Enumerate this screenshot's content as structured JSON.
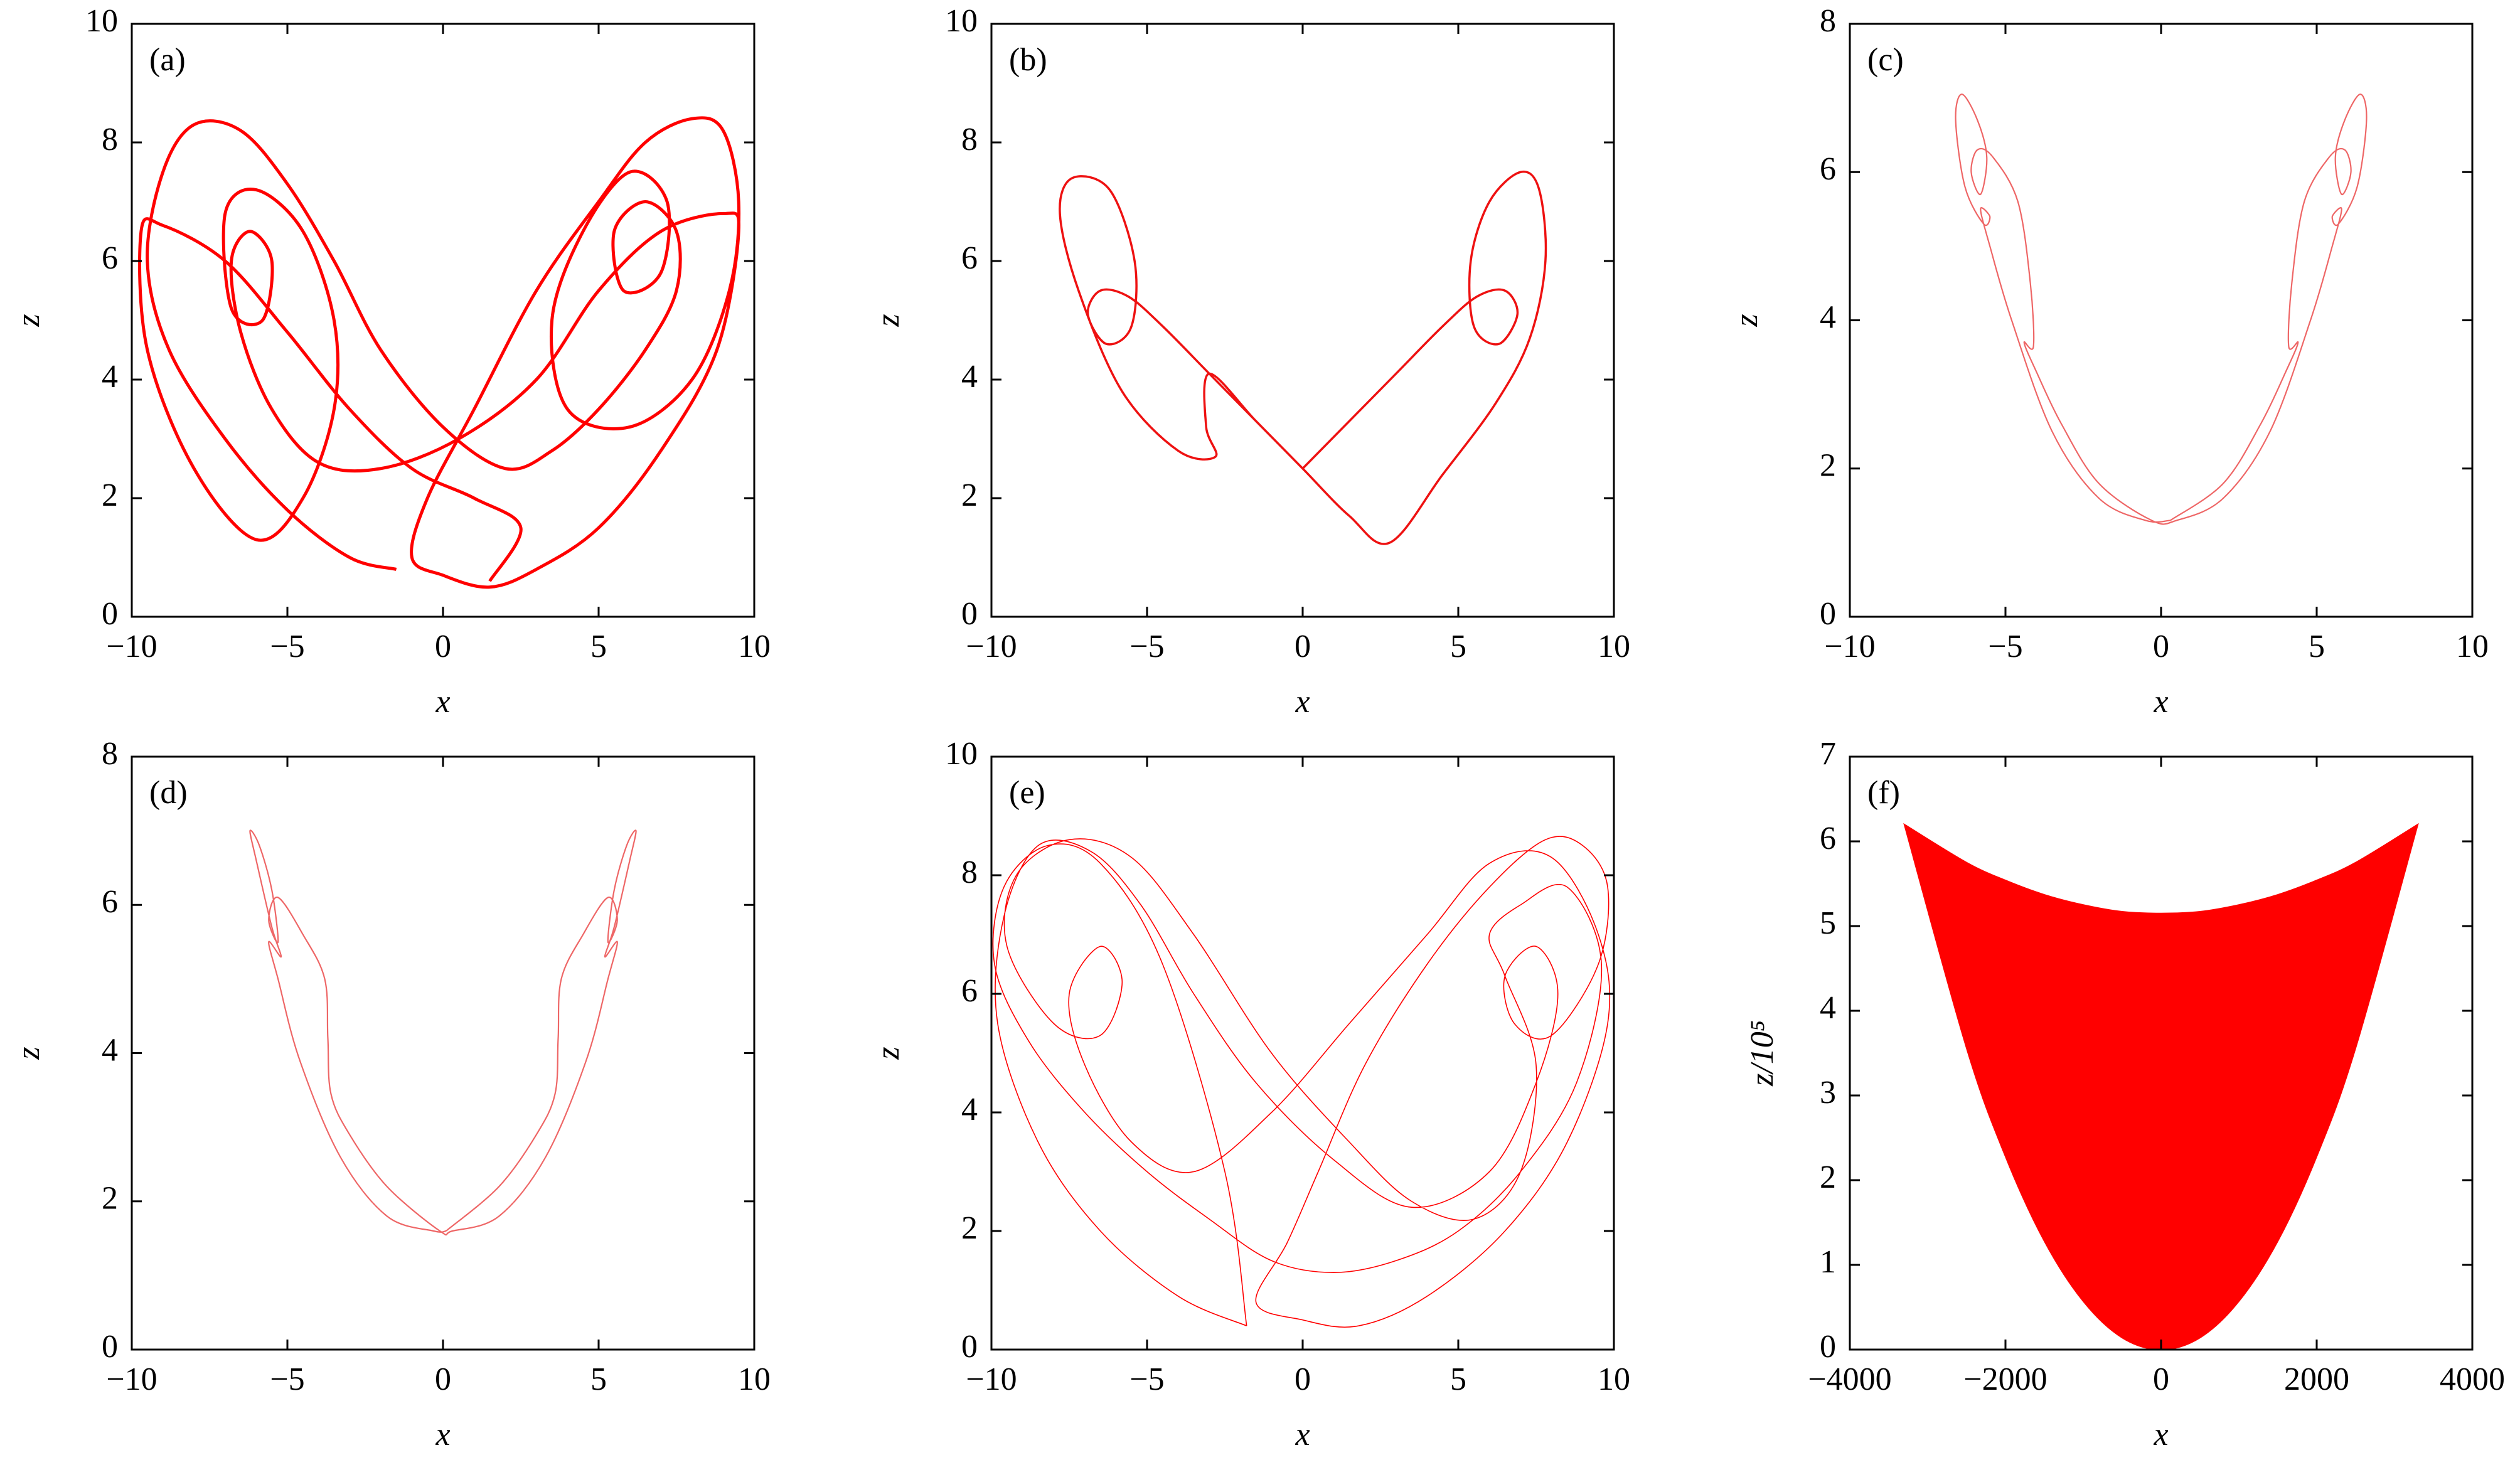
{
  "chart_data": [
    {
      "type": "line",
      "label": "(a)",
      "xlabel": "x",
      "ylabel": "z",
      "xlim": [
        -10,
        10
      ],
      "ylim": [
        0,
        10
      ],
      "xticks": [
        {
          "value": -10,
          "label": "−10"
        },
        {
          "value": -5,
          "label": "−5"
        },
        0,
        5,
        10
      ],
      "yticks": [
        0,
        2,
        4,
        6,
        8,
        10
      ],
      "series": [
        {
          "color": "#ff0000",
          "x": [
            -1.5,
            -3,
            -5,
            -7,
            -8.8,
            -9.5,
            -9,
            -8,
            -6.5,
            -5,
            -3.5,
            -2,
            0,
            2,
            3.5,
            5,
            6.5,
            7.5,
            7.5,
            6.5,
            5.5,
            5.8,
            7,
            7.2,
            6,
            4.5,
            3.5,
            4,
            6,
            8,
            9.2,
            9.5,
            9,
            8,
            6.5,
            5,
            3,
            1,
            -0.5,
            -1,
            0,
            1.5,
            3,
            5,
            7,
            8.8,
            9.5,
            9,
            7,
            5,
            3,
            0.5,
            -2,
            -4,
            -5.5,
            -6.5,
            -6.8,
            -6.2,
            -5.5,
            -5.8,
            -6.8,
            -7,
            -6,
            -4.5,
            -3.5,
            -3.5,
            -4.5,
            -6,
            -8,
            -9.5,
            -9.7,
            -9,
            -7,
            -5,
            -3,
            -1,
            1,
            2.5,
            1.5
          ],
          "values": [
            0.8,
            1,
            1.8,
            3,
            4.5,
            6,
            7.5,
            8.3,
            8.2,
            7.3,
            6,
            4.5,
            3.2,
            2.5,
            2.8,
            3.5,
            4.5,
            5.5,
            6.5,
            7,
            6.5,
            5.5,
            5.8,
            7,
            7.5,
            6.5,
            5,
            3.5,
            3.2,
            4,
            5.5,
            7,
            8.2,
            8.4,
            8,
            7,
            5.5,
            3.5,
            2,
            1,
            0.7,
            0.5,
            0.8,
            1.5,
            2.8,
            4.5,
            6.5,
            6.8,
            6.5,
            5.5,
            4,
            3,
            2.5,
            2.6,
            3.5,
            4.8,
            6,
            6.5,
            6,
            5,
            5.2,
            6.8,
            7.2,
            6.5,
            5,
            3.5,
            2,
            1.3,
            2.5,
            4.5,
            6.5,
            6.6,
            6,
            4.8,
            3.5,
            2.5,
            2,
            1.5,
            0.6
          ]
        }
      ]
    },
    {
      "type": "line",
      "label": "(b)",
      "xlabel": "x",
      "ylabel": "z",
      "xlim": [
        -10,
        10
      ],
      "ylim": [
        0,
        10
      ],
      "xticks": [
        {
          "value": -10,
          "label": "−10"
        },
        {
          "value": -5,
          "label": "−5"
        },
        0,
        5,
        10
      ],
      "yticks": [
        0,
        2,
        4,
        6,
        8,
        10
      ],
      "series": [
        {
          "color": "#ee1111",
          "x": [
            0,
            1.5,
            3,
            4.5,
            5.6,
            6.5,
            6.9,
            6.3,
            5.5,
            5.4,
            6,
            7,
            7.6,
            7.8,
            7.3,
            6.2,
            4.5,
            2.8,
            1.5,
            0,
            -1.5,
            -3,
            -3.1,
            -2.8,
            -4,
            -5.8,
            -7.2,
            -7.8,
            -7.4,
            -6.2,
            -5.4,
            -5.5,
            -6.3,
            -6.9,
            -6.5,
            -5.6,
            -4.5,
            -3,
            -1.5,
            0
          ],
          "values": [
            2.5,
            3.3,
            4.1,
            4.9,
            5.4,
            5.5,
            5.1,
            4.6,
            4.9,
            6,
            7,
            7.5,
            7.2,
            6,
            4.7,
            3.6,
            2.4,
            1.25,
            1.7,
            2.5,
            3.3,
            4.1,
            3.2,
            2.7,
            2.8,
            3.8,
            5.5,
            6.8,
            7.4,
            7.2,
            6,
            4.9,
            4.6,
            5.1,
            5.5,
            5.4,
            4.9,
            4.1,
            3.3,
            2.5
          ]
        }
      ]
    },
    {
      "type": "line",
      "label": "(c)",
      "xlabel": "x",
      "ylabel": "z",
      "xlim": [
        -10,
        10
      ],
      "ylim": [
        0,
        8
      ],
      "xticks": [
        {
          "value": -10,
          "label": "−10"
        },
        {
          "value": -5,
          "label": "−5"
        },
        0,
        5,
        10
      ],
      "yticks": [
        0,
        2,
        4,
        6,
        8
      ],
      "series": [
        {
          "color": "#ee6666",
          "x": [
            0.3,
            2,
            3.2,
            4,
            4.4,
            4.1,
            4.2,
            4.6,
            5.4,
            5.9,
            6.1,
            5.8,
            5.6,
            5.9,
            6.4,
            6.6,
            6.3,
            5.7,
            5.5,
            5.8,
            5.5,
            4.8,
            3.5,
            2,
            0.5,
            -0.3,
            -2,
            -3.2,
            -4,
            -4.4,
            -4.1,
            -4.2,
            -4.6,
            -5.4,
            -5.9,
            -6.1,
            -5.8,
            -5.6,
            -5.9,
            -6.4,
            -6.6,
            -6.3,
            -5.7,
            -5.5,
            -5.8,
            -5.5,
            -4.8,
            -3.5,
            -2,
            -0.5,
            0.3
          ],
          "values": [
            1.3,
            1.8,
            2.6,
            3.3,
            3.7,
            3.65,
            4.5,
            5.6,
            6.2,
            6.3,
            6,
            5.7,
            6.2,
            6.7,
            7.05,
            6.7,
            5.8,
            5.3,
            5.4,
            5.5,
            5,
            4,
            2.5,
            1.6,
            1.3,
            1.3,
            1.8,
            2.6,
            3.3,
            3.7,
            3.65,
            4.5,
            5.6,
            6.2,
            6.3,
            6,
            5.7,
            6.2,
            6.7,
            7.05,
            6.7,
            5.8,
            5.3,
            5.4,
            5.5,
            5,
            4,
            2.5,
            1.6,
            1.3,
            1.3
          ]
        }
      ]
    },
    {
      "type": "line",
      "label": "(d)",
      "xlabel": "x",
      "ylabel": "z",
      "xlim": [
        -10,
        10
      ],
      "ylim": [
        0,
        8
      ],
      "xticks": [
        {
          "value": -10,
          "label": "−10"
        },
        {
          "value": -5,
          "label": "−5"
        },
        0,
        5,
        10
      ],
      "yticks": [
        0,
        2,
        4,
        6,
        8
      ],
      "series": [
        {
          "color": "#ee6666",
          "x": [
            0.1,
            1.8,
            3,
            3.6,
            3.7,
            3.8,
            4.5,
            5.3,
            5.6,
            5.3,
            5.5,
            5.9,
            6.2,
            6,
            5.5,
            5.2,
            5.6,
            5.3,
            4.6,
            3.3,
            1.8,
            0.3,
            -0.1,
            -1.8,
            -3,
            -3.6,
            -3.7,
            -3.8,
            -4.5,
            -5.3,
            -5.6,
            -5.3,
            -5.5,
            -5.9,
            -6.2,
            -6,
            -5.5,
            -5.2,
            -5.6,
            -5.3,
            -4.6,
            -3.3,
            -1.8,
            -0.3,
            0.1
          ],
          "values": [
            1.6,
            2.2,
            2.9,
            3.45,
            4.2,
            5,
            5.6,
            6.1,
            5.8,
            5.5,
            6.2,
            6.8,
            7,
            6.6,
            5.7,
            5.3,
            5.5,
            5,
            3.9,
            2.6,
            1.8,
            1.6,
            1.6,
            2.2,
            2.9,
            3.45,
            4.2,
            5,
            5.6,
            6.1,
            5.8,
            5.5,
            6.2,
            6.8,
            7,
            6.6,
            5.7,
            5.3,
            5.5,
            5,
            3.9,
            2.6,
            1.8,
            1.6,
            1.6
          ]
        }
      ]
    },
    {
      "type": "line",
      "label": "(e)",
      "xlabel": "x",
      "ylabel": "z",
      "xlim": [
        -10,
        10
      ],
      "ylim": [
        0,
        10
      ],
      "xticks": [
        {
          "value": -10,
          "label": "−10"
        },
        {
          "value": -5,
          "label": "−5"
        },
        0,
        5,
        10
      ],
      "yticks": [
        0,
        2,
        4,
        6,
        8,
        10
      ],
      "series": [
        {
          "color": "#ff0000",
          "x": [
            -1.8,
            -4,
            -6.5,
            -8.5,
            -9.8,
            -9.6,
            -8.5,
            -6.8,
            -5.2,
            -3.5,
            -1.5,
            1,
            3.5,
            6,
            7.5,
            8.2,
            7.5,
            6.5,
            6.8,
            8,
            9.5,
            9.8,
            9,
            7.8,
            6,
            4,
            2,
            0.5,
            -0.5,
            -1.5,
            0,
            1.8,
            4,
            6.5,
            8.5,
            9.8,
            9.5,
            8,
            6,
            4,
            1.5,
            -1,
            -3.5,
            -5.5,
            -7,
            -7.5,
            -6.5,
            -5.8,
            -6.5,
            -8,
            -9.5,
            -9.2,
            -7.5,
            -5.5,
            -3.5,
            -1,
            1.5,
            3.5,
            5.5,
            7,
            7.5,
            6.5,
            6,
            7,
            8.5,
            9.6,
            8.8,
            7,
            5,
            3,
            1,
            -1,
            -3,
            -5,
            -7,
            -8.8,
            -9.9,
            -9.6,
            -8.2,
            -6.5,
            -4.5,
            -2.5,
            -1.8
          ],
          "values": [
            0.4,
            0.9,
            2,
            3.5,
            5.5,
            7.3,
            8.5,
            8.4,
            7.5,
            6,
            4.5,
            3.2,
            2.4,
            3,
            4.5,
            6,
            6.8,
            6.3,
            5.5,
            5.3,
            6.5,
            7.8,
            8.5,
            8.6,
            7.8,
            6.5,
            4.8,
            3,
            1.8,
            0.8,
            0.5,
            0.4,
            0.9,
            2,
            3.5,
            5.5,
            7,
            8.3,
            8.2,
            7,
            5.5,
            4,
            3,
            3.5,
            4.8,
            6,
            6.8,
            6.2,
            5.3,
            5.5,
            6.8,
            8,
            8.6,
            8.3,
            7,
            5,
            3.5,
            2.5,
            2.2,
            3,
            4.8,
            6.3,
            7,
            7.5,
            7.8,
            6.5,
            4.5,
            3,
            2,
            1.5,
            1.3,
            1.5,
            2.2,
            3,
            4,
            5.2,
            6.5,
            7.8,
            8.5,
            8.2,
            6.5,
            3,
            0.4
          ]
        }
      ]
    },
    {
      "type": "area",
      "label": "(f)",
      "xlabel": "x",
      "ylabel": "z/10⁵",
      "xlim": [
        -4000,
        4000
      ],
      "ylim": [
        0,
        7
      ],
      "xticks": [
        {
          "value": -4000,
          "label": "−4000"
        },
        {
          "value": -2000,
          "label": "−2000"
        },
        0,
        2000,
        4000
      ],
      "yticks": [
        0,
        1,
        2,
        3,
        4,
        5,
        6,
        7
      ],
      "series": [
        {
          "color": "#ff0000",
          "x": [
            -3300,
            -2500,
            -2000,
            -1500,
            -1000,
            -500,
            0,
            500,
            1000,
            1500,
            2000,
            2500,
            3300
          ],
          "values": [
            6.2,
            5.75,
            5.54,
            5.37,
            5.25,
            5.17,
            5.15,
            5.17,
            5.25,
            5.37,
            5.54,
            5.75,
            6.2
          ],
          "lower": [
            6.2,
            3.56,
            2.28,
            1.28,
            0.57,
            0.14,
            0,
            0.14,
            0.57,
            1.28,
            2.28,
            3.56,
            6.2
          ]
        }
      ]
    }
  ]
}
